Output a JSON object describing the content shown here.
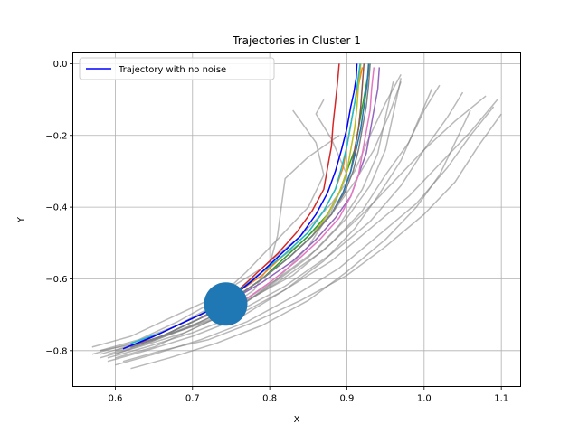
{
  "chart_data": {
    "type": "line",
    "title": "Trajectories in Cluster 1",
    "xlabel": "X",
    "ylabel": "Y",
    "xlim": [
      0.545,
      1.125
    ],
    "ylim": [
      -0.9,
      0.03
    ],
    "xticks": [
      "0.6",
      "0.7",
      "0.8",
      "0.9",
      "1.0",
      "1.1"
    ],
    "xtick_values": [
      0.6,
      0.7,
      0.8,
      0.9,
      1.0,
      1.1
    ],
    "yticks": [
      "0.0",
      "−0.2",
      "−0.4",
      "−0.6",
      "−0.8"
    ],
    "ytick_values": [
      0.0,
      -0.2,
      -0.4,
      -0.6,
      -0.8
    ],
    "grid": true,
    "legend": {
      "placement": "top-left",
      "entries": [
        "Trajectory with no noise"
      ]
    },
    "colors": {
      "gray": "#808080",
      "blue": "#0000ff",
      "marker": "#1f77b4",
      "palette": [
        "#1f77b4",
        "#ff7f0e",
        "#2ca02c",
        "#d62728",
        "#9467bd",
        "#8c564b",
        "#e377c2",
        "#7f7f7f",
        "#bcbd22",
        "#17becf"
      ]
    },
    "series": [
      {
        "name": "Trajectory with no noise",
        "color": "#0000ff",
        "x": [
          0.61,
          0.65,
          0.7,
          0.74,
          0.78,
          0.81,
          0.84,
          0.86,
          0.875,
          0.885,
          0.893,
          0.9,
          0.905,
          0.909,
          0.912,
          0.913
        ],
        "y": [
          -0.795,
          -0.76,
          -0.71,
          -0.67,
          -0.6,
          -0.54,
          -0.48,
          -0.42,
          -0.36,
          -0.3,
          -0.24,
          -0.18,
          -0.12,
          -0.08,
          -0.04,
          0.0
        ]
      }
    ],
    "marker": {
      "x": 0.743,
      "y": -0.67,
      "color": "#1f77b4"
    },
    "gray_trajectories": [
      {
        "x": [
          0.57,
          0.62,
          0.68,
          0.74,
          0.79,
          0.84,
          0.88,
          0.91,
          0.935,
          0.955,
          0.97
        ],
        "y": [
          -0.81,
          -0.78,
          -0.73,
          -0.66,
          -0.58,
          -0.5,
          -0.42,
          -0.33,
          -0.24,
          -0.14,
          -0.05
        ]
      },
      {
        "x": [
          0.58,
          0.63,
          0.69,
          0.75,
          0.81,
          0.87,
          0.92,
          0.96,
          1.0,
          1.04,
          1.08
        ],
        "y": [
          -0.82,
          -0.79,
          -0.75,
          -0.69,
          -0.61,
          -0.52,
          -0.42,
          -0.33,
          -0.24,
          -0.16,
          -0.09
        ]
      },
      {
        "x": [
          0.59,
          0.64,
          0.7,
          0.76,
          0.82,
          0.88,
          0.93,
          0.98,
          1.02,
          1.06,
          1.095
        ],
        "y": [
          -0.83,
          -0.8,
          -0.76,
          -0.71,
          -0.63,
          -0.55,
          -0.46,
          -0.37,
          -0.28,
          -0.19,
          -0.1
        ]
      },
      {
        "x": [
          0.6,
          0.65,
          0.71,
          0.77,
          0.83,
          0.89,
          0.94,
          0.99,
          1.03,
          1.06,
          1.09
        ],
        "y": [
          -0.84,
          -0.81,
          -0.77,
          -0.72,
          -0.65,
          -0.57,
          -0.48,
          -0.39,
          -0.29,
          -0.2,
          -0.12
        ]
      },
      {
        "x": [
          0.58,
          0.63,
          0.69,
          0.76,
          0.82,
          0.88,
          0.93,
          0.97,
          1.0,
          1.03,
          1.05
        ],
        "y": [
          -0.8,
          -0.78,
          -0.74,
          -0.69,
          -0.62,
          -0.53,
          -0.44,
          -0.34,
          -0.24,
          -0.15,
          -0.08
        ]
      },
      {
        "x": [
          0.6,
          0.65,
          0.71,
          0.77,
          0.83,
          0.88,
          0.92,
          0.95,
          0.98,
          1.0,
          1.02
        ],
        "y": [
          -0.8,
          -0.77,
          -0.72,
          -0.66,
          -0.59,
          -0.5,
          -0.41,
          -0.31,
          -0.22,
          -0.13,
          -0.06
        ]
      },
      {
        "x": [
          0.57,
          0.62,
          0.67,
          0.73,
          0.79,
          0.84,
          0.88,
          0.91,
          0.93,
          0.95,
          0.97
        ],
        "y": [
          -0.79,
          -0.76,
          -0.71,
          -0.65,
          -0.57,
          -0.48,
          -0.39,
          -0.3,
          -0.2,
          -0.11,
          -0.03
        ]
      },
      {
        "x": [
          0.59,
          0.64,
          0.7,
          0.76,
          0.82,
          0.87,
          0.91,
          0.94,
          0.97,
          0.99,
          1.01
        ],
        "y": [
          -0.82,
          -0.79,
          -0.75,
          -0.7,
          -0.63,
          -0.55,
          -0.46,
          -0.37,
          -0.27,
          -0.17,
          -0.07
        ]
      },
      {
        "x": [
          0.61,
          0.66,
          0.72,
          0.78,
          0.84,
          0.9,
          0.95,
          1.0,
          1.04,
          1.07,
          1.1
        ],
        "y": [
          -0.83,
          -0.8,
          -0.77,
          -0.72,
          -0.66,
          -0.59,
          -0.51,
          -0.42,
          -0.33,
          -0.23,
          -0.14
        ]
      },
      {
        "x": [
          0.6,
          0.64,
          0.69,
          0.74,
          0.78,
          0.8,
          0.81,
          0.815,
          0.82,
          0.85,
          0.89
        ],
        "y": [
          -0.81,
          -0.78,
          -0.74,
          -0.69,
          -0.63,
          -0.56,
          -0.48,
          -0.4,
          -0.32,
          -0.26,
          -0.2
        ]
      },
      {
        "x": [
          0.58,
          0.63,
          0.68,
          0.73,
          0.77,
          0.81,
          0.85,
          0.87,
          0.86,
          0.84,
          0.83
        ],
        "y": [
          -0.8,
          -0.77,
          -0.72,
          -0.66,
          -0.58,
          -0.49,
          -0.4,
          -0.31,
          -0.22,
          -0.16,
          -0.13
        ]
      },
      {
        "x": [
          0.59,
          0.64,
          0.7,
          0.76,
          0.81,
          0.86,
          0.9,
          0.93,
          0.95,
          0.96,
          0.97
        ],
        "y": [
          -0.81,
          -0.78,
          -0.73,
          -0.67,
          -0.6,
          -0.52,
          -0.43,
          -0.34,
          -0.24,
          -0.14,
          -0.04
        ]
      },
      {
        "x": [
          0.6,
          0.65,
          0.7,
          0.76,
          0.81,
          0.85,
          0.88,
          0.9,
          0.88,
          0.86,
          0.87
        ],
        "y": [
          -0.82,
          -0.79,
          -0.74,
          -0.68,
          -0.6,
          -0.51,
          -0.41,
          -0.31,
          -0.21,
          -0.14,
          -0.1
        ]
      },
      {
        "x": [
          0.62,
          0.67,
          0.73,
          0.79,
          0.85,
          0.9,
          0.95,
          0.99,
          1.02,
          1.04,
          1.06
        ],
        "y": [
          -0.85,
          -0.82,
          -0.78,
          -0.73,
          -0.66,
          -0.58,
          -0.49,
          -0.4,
          -0.31,
          -0.22,
          -0.13
        ]
      },
      {
        "x": [
          0.58,
          0.63,
          0.69,
          0.75,
          0.8,
          0.85,
          0.89,
          0.92,
          0.94,
          0.95,
          0.96
        ],
        "y": [
          -0.81,
          -0.78,
          -0.74,
          -0.69,
          -0.62,
          -0.54,
          -0.45,
          -0.35,
          -0.25,
          -0.15,
          -0.05
        ]
      }
    ],
    "colored_trajectories": [
      {
        "color": "#ff7f0e",
        "x": [
          0.62,
          0.66,
          0.71,
          0.75,
          0.79,
          0.82,
          0.85,
          0.87,
          0.885,
          0.895,
          0.9,
          0.905,
          0.91,
          0.915,
          0.92
        ],
        "y": [
          -0.79,
          -0.75,
          -0.7,
          -0.65,
          -0.59,
          -0.53,
          -0.47,
          -0.41,
          -0.35,
          -0.29,
          -0.23,
          -0.17,
          -0.11,
          -0.06,
          -0.01
        ]
      },
      {
        "color": "#2ca02c",
        "x": [
          0.62,
          0.66,
          0.71,
          0.75,
          0.79,
          0.82,
          0.85,
          0.875,
          0.89,
          0.9,
          0.91,
          0.915,
          0.92,
          0.925,
          0.93
        ],
        "y": [
          -0.79,
          -0.76,
          -0.71,
          -0.66,
          -0.6,
          -0.54,
          -0.48,
          -0.42,
          -0.36,
          -0.3,
          -0.24,
          -0.18,
          -0.12,
          -0.06,
          0.0
        ]
      },
      {
        "color": "#d62728",
        "x": [
          0.62,
          0.66,
          0.71,
          0.75,
          0.78,
          0.81,
          0.835,
          0.855,
          0.87,
          0.875,
          0.88,
          0.882,
          0.885,
          0.888,
          0.89
        ],
        "y": [
          -0.79,
          -0.75,
          -0.7,
          -0.65,
          -0.59,
          -0.53,
          -0.47,
          -0.41,
          -0.35,
          -0.29,
          -0.23,
          -0.17,
          -0.11,
          -0.05,
          0.0
        ]
      },
      {
        "color": "#9467bd",
        "x": [
          0.62,
          0.66,
          0.71,
          0.75,
          0.79,
          0.83,
          0.86,
          0.885,
          0.905,
          0.915,
          0.925,
          0.93,
          0.935,
          0.94,
          0.942
        ],
        "y": [
          -0.79,
          -0.76,
          -0.71,
          -0.66,
          -0.61,
          -0.55,
          -0.49,
          -0.43,
          -0.37,
          -0.31,
          -0.25,
          -0.19,
          -0.13,
          -0.07,
          -0.01
        ]
      },
      {
        "color": "#8c564b",
        "x": [
          0.62,
          0.66,
          0.71,
          0.75,
          0.79,
          0.825,
          0.855,
          0.88,
          0.895,
          0.905,
          0.91,
          0.915,
          0.918,
          0.92,
          0.922
        ],
        "y": [
          -0.79,
          -0.76,
          -0.71,
          -0.66,
          -0.6,
          -0.54,
          -0.48,
          -0.42,
          -0.36,
          -0.3,
          -0.24,
          -0.18,
          -0.12,
          -0.06,
          0.0
        ]
      },
      {
        "color": "#e377c2",
        "x": [
          0.62,
          0.66,
          0.71,
          0.76,
          0.8,
          0.835,
          0.865,
          0.89,
          0.905,
          0.915,
          0.92,
          0.925,
          0.93,
          0.932,
          0.935
        ],
        "y": [
          -0.79,
          -0.76,
          -0.71,
          -0.67,
          -0.61,
          -0.55,
          -0.49,
          -0.43,
          -0.37,
          -0.31,
          -0.25,
          -0.19,
          -0.13,
          -0.07,
          -0.01
        ]
      },
      {
        "color": "#bcbd22",
        "x": [
          0.62,
          0.66,
          0.71,
          0.75,
          0.79,
          0.825,
          0.855,
          0.875,
          0.89,
          0.9,
          0.905,
          0.91,
          0.913,
          0.915,
          0.918
        ],
        "y": [
          -0.79,
          -0.76,
          -0.71,
          -0.66,
          -0.6,
          -0.54,
          -0.48,
          -0.42,
          -0.36,
          -0.3,
          -0.24,
          -0.18,
          -0.12,
          -0.06,
          0.0
        ]
      },
      {
        "color": "#17becf",
        "x": [
          0.62,
          0.66,
          0.71,
          0.75,
          0.785,
          0.82,
          0.85,
          0.87,
          0.885,
          0.893,
          0.9,
          0.905,
          0.91,
          0.914,
          0.917
        ],
        "y": [
          -0.78,
          -0.75,
          -0.7,
          -0.65,
          -0.59,
          -0.53,
          -0.47,
          -0.41,
          -0.35,
          -0.29,
          -0.23,
          -0.17,
          -0.11,
          -0.05,
          0.0
        ]
      },
      {
        "color": "#1f77b4",
        "x": [
          0.62,
          0.66,
          0.71,
          0.75,
          0.79,
          0.825,
          0.855,
          0.88,
          0.895,
          0.905,
          0.912,
          0.918,
          0.922,
          0.926,
          0.928
        ],
        "y": [
          -0.79,
          -0.76,
          -0.71,
          -0.66,
          -0.6,
          -0.54,
          -0.48,
          -0.42,
          -0.36,
          -0.3,
          -0.24,
          -0.18,
          -0.12,
          -0.06,
          0.0
        ]
      },
      {
        "color": "#7f7f7f",
        "x": [
          0.62,
          0.66,
          0.71,
          0.75,
          0.79,
          0.825,
          0.855,
          0.88,
          0.897,
          0.908,
          0.915,
          0.92,
          0.925,
          0.928,
          0.93
        ],
        "y": [
          -0.79,
          -0.76,
          -0.71,
          -0.66,
          -0.6,
          -0.54,
          -0.48,
          -0.42,
          -0.36,
          -0.3,
          -0.24,
          -0.18,
          -0.12,
          -0.06,
          0.0
        ]
      }
    ]
  }
}
